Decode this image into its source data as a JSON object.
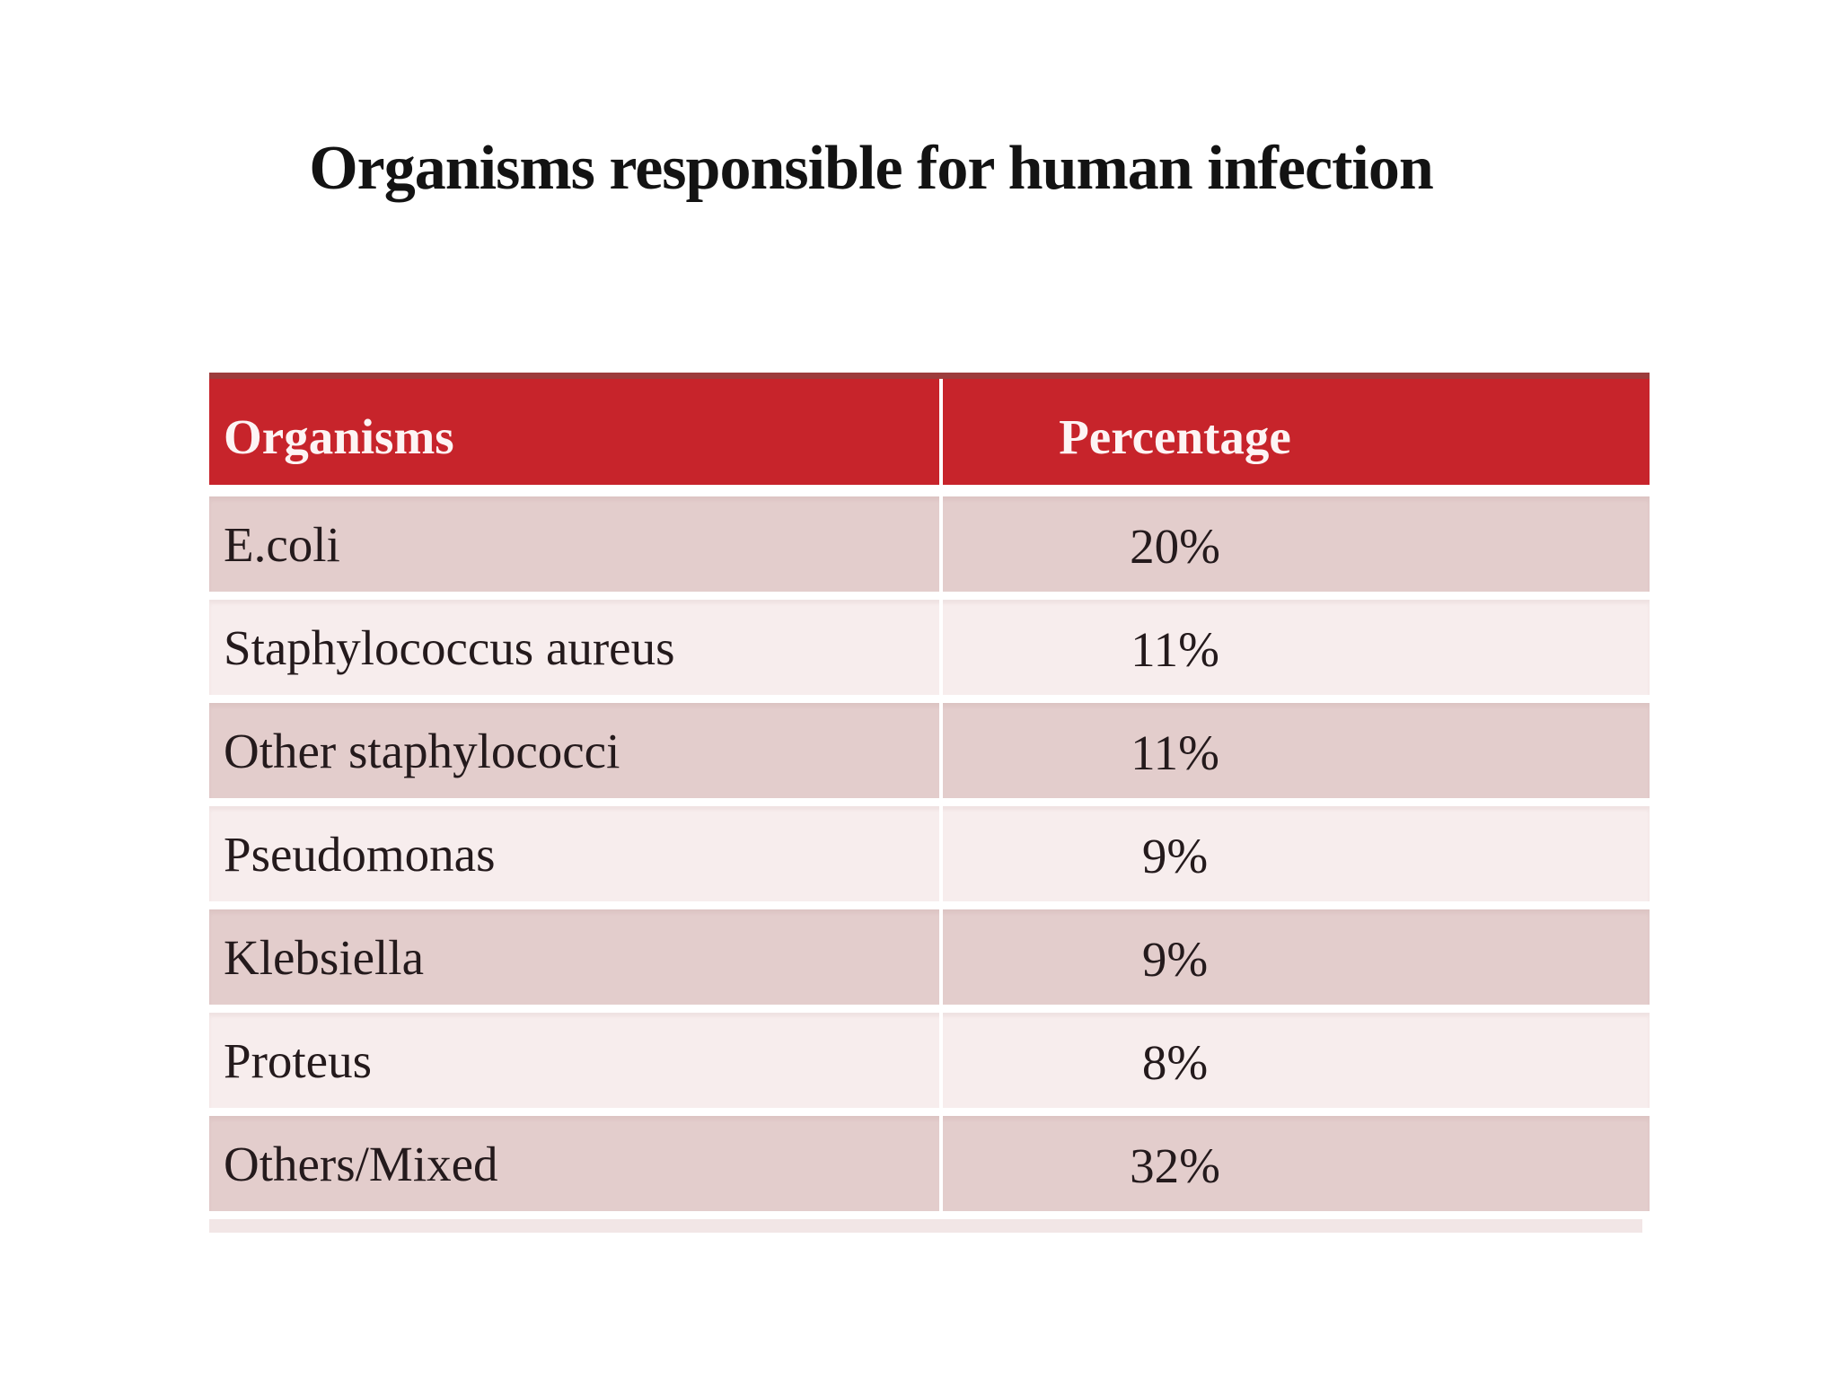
{
  "page": {
    "title": "Organisms responsible for human infection"
  },
  "table": {
    "columns": [
      "Organisms",
      "Percentage"
    ],
    "rows": [
      {
        "organism": "E.coli",
        "percentage": "20%"
      },
      {
        "organism": "Staphylococcus aureus",
        "percentage": "11%"
      },
      {
        "organism": "Other staphylococci",
        "percentage": "11%"
      },
      {
        "organism": "Pseudomonas",
        "percentage": "9%"
      },
      {
        "organism": "Klebsiella",
        "percentage": "9%"
      },
      {
        "organism": "Proteus",
        "percentage": "8%"
      },
      {
        "organism": "Others/Mixed",
        "percentage": "32%"
      }
    ]
  },
  "colors": {
    "header_red": "#c7242b",
    "header_top_band": "#9d3c3c",
    "header_text": "#fdf4f4",
    "row_dark_pink": "#e3cdcc",
    "row_light_pink": "#f7eded",
    "body_text": "#241a1c",
    "divider_white": "#ffffff",
    "bottom_stub_pink": "#f2e6e6",
    "background": "#ffffff"
  },
  "chart_data": {
    "type": "table",
    "title": "Organisms responsible for human infection",
    "categories": [
      "E.coli",
      "Staphylococcus aureus",
      "Other staphylococci",
      "Pseudomonas",
      "Klebsiella",
      "Proteus",
      "Others/Mixed"
    ],
    "values": [
      20,
      11,
      11,
      9,
      9,
      8,
      32
    ],
    "value_unit": "%",
    "columns": [
      "Organisms",
      "Percentage"
    ]
  }
}
